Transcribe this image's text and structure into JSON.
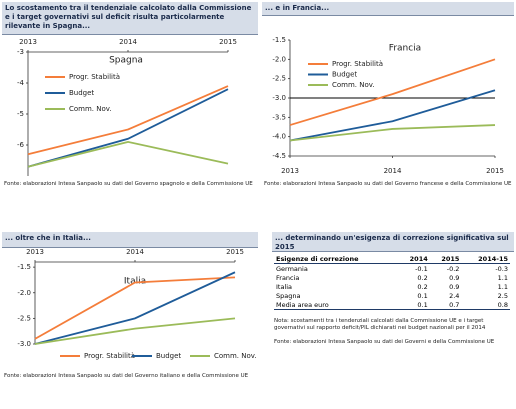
{
  "chart_data": [
    {
      "type": "line",
      "header": "Lo scostamento tra il tendenziale calcolato dalla Commissione e i target governativi sul deficit risulta particolarmente rilevante in Spagna...",
      "title": "Spagna",
      "categories": [
        "2013",
        "2014",
        "2015"
      ],
      "ylim": [
        -7,
        -3
      ],
      "yticks": [
        -3,
        -4,
        -5,
        -6
      ],
      "series": [
        {
          "name": "Progr. Stabilità",
          "color": "#f47d3a",
          "values": [
            -6.3,
            -5.5,
            -4.1
          ]
        },
        {
          "name": "Budget",
          "color": "#1f5c99",
          "values": [
            -6.7,
            -5.8,
            -4.2
          ]
        },
        {
          "name": "Comm. Nov.",
          "color": "#9bbb59",
          "values": [
            -6.7,
            -5.9,
            -6.6
          ]
        }
      ],
      "source": "Fonte: elaborazioni Intesa Sanpaolo su dati del Governo spagnolo e della Commissione UE"
    },
    {
      "type": "line",
      "header": "... e in Francia...",
      "title": "Francia",
      "categories": [
        "2013",
        "2014",
        "2015"
      ],
      "ylim": [
        -4.5,
        -1.5
      ],
      "yticks": [
        -1.5,
        {
          "value": -2,
          "label": "-2.0"
        },
        -2.5,
        {
          "value": -3,
          "label": "-3.0"
        },
        -3.5,
        {
          "value": -4,
          "label": "-4.0"
        },
        -4.5
      ],
      "reference_line": -3,
      "series": [
        {
          "name": "Progr. Stabilità",
          "color": "#f47d3a",
          "values": [
            -3.7,
            -2.9,
            -2.0
          ]
        },
        {
          "name": "Budget",
          "color": "#1f5c99",
          "values": [
            -4.1,
            -3.6,
            -2.8
          ]
        },
        {
          "name": "Comm. Nov.",
          "color": "#9bbb59",
          "values": [
            -4.1,
            -3.8,
            -3.7
          ]
        }
      ],
      "source": "Fonte: elaborazioni Intesa Sanpaolo su dati del Governo francese e della Commissione UE"
    },
    {
      "type": "line",
      "header": "... oltre che in Italia...",
      "title": "Italia",
      "categories": [
        "2013",
        "2014",
        "2015"
      ],
      "ylim": [
        -3,
        -1.4
      ],
      "yticks": [
        -1.5,
        {
          "value": -2,
          "label": "-2.0"
        },
        -2.5,
        {
          "value": -3,
          "label": "-3.0"
        }
      ],
      "series": [
        {
          "name": "Progr. Stabilità",
          "color": "#f47d3a",
          "values": [
            -2.9,
            -1.8,
            -1.7
          ]
        },
        {
          "name": "Budget",
          "color": "#1f5c99",
          "values": [
            -3.0,
            -2.5,
            -1.6
          ]
        },
        {
          "name": "Comm. Nov.",
          "color": "#9bbb59",
          "values": [
            -3.0,
            -2.7,
            -2.5
          ]
        }
      ],
      "source": "Fonte: elaborazioni Intesa Sanpaolo su dati del Governo italiano e della Commissione UE"
    }
  ],
  "table": {
    "header": "... determinando un'esigenza di correzione significativa sul 2015",
    "columns": [
      "Esigenze di correzione",
      "2014",
      "2015",
      "2014-15"
    ],
    "rows": [
      [
        "Germania",
        -0.1,
        -0.2,
        -0.3
      ],
      [
        "Francia",
        0.2,
        0.9,
        1.1
      ],
      [
        "Italia",
        0.2,
        0.9,
        1.1
      ],
      [
        "Spagna",
        0.1,
        2.4,
        2.5
      ],
      [
        "Media area euro",
        0.1,
        0.7,
        0.8
      ]
    ],
    "note": "Nota: scostamenti tra i tendenziali calcolati dalla Commissione UE e i target governativi sul rapporto deficit/PIL dichiarati nei budget nazionali per il 2014",
    "source": "Fonte: elaborazioni Intesa Sanpaolo su dati dei Governi e della Commissione UE"
  }
}
